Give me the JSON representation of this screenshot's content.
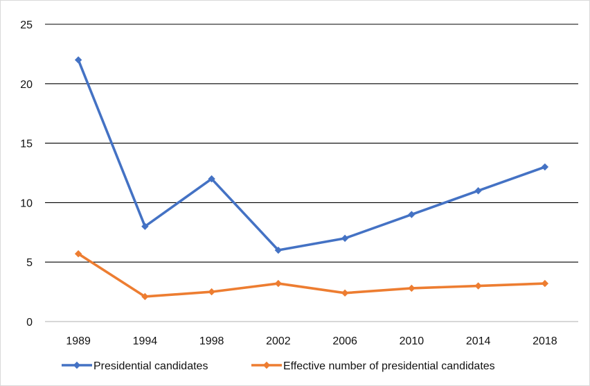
{
  "chart_data": {
    "type": "line",
    "categories": [
      "1989",
      "1994",
      "1998",
      "2002",
      "2006",
      "2010",
      "2014",
      "2018"
    ],
    "series": [
      {
        "name": "Presidential candidates",
        "color": "#4472C4",
        "values": [
          22,
          8,
          12,
          6,
          7,
          9,
          11,
          13
        ]
      },
      {
        "name": "Effective number of presidential candidates",
        "color": "#ED7D31",
        "values": [
          5.7,
          2.1,
          2.5,
          3.2,
          2.4,
          2.8,
          3.0,
          3.2
        ]
      }
    ],
    "y_ticks": [
      "0",
      "5",
      "10",
      "15",
      "20",
      "25"
    ],
    "ylim": [
      0,
      25
    ],
    "grid": true,
    "legend_position": "bottom",
    "marker": "diamond"
  }
}
